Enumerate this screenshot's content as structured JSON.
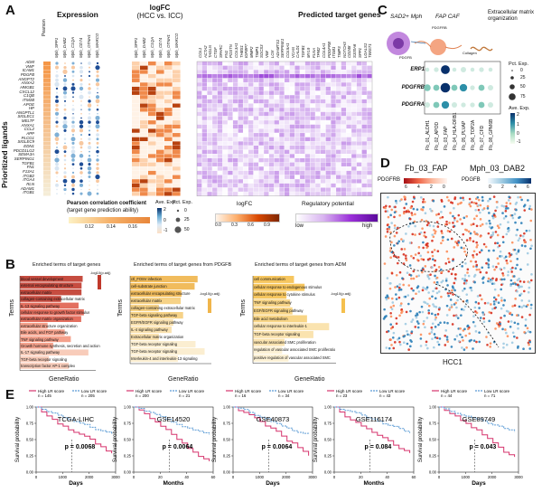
{
  "panelA": {
    "letter": "A",
    "header_expression": "Expression",
    "header_logfc": "logFC\n(HCC vs. ICC)",
    "header_logfc_line1": "logFC",
    "header_logfc_line2": "(HCC vs. ICC)",
    "header_targets": "Predicted target genes",
    "ylabel": "Prioritized ligands",
    "pearson_label": "Pearson",
    "expression_cols": [
      "Mph_SPP1",
      "Mph_DAB2",
      "Mph_C1QA",
      "Mph_CD74",
      "Mph_OTNH1",
      "Mph_MARCO"
    ],
    "logfc_cols": [
      "Mph_SPP1",
      "Mph_DAB2",
      "Mph_C1QA",
      "Mph_CD74",
      "Mph_OTNH1",
      "Mph_MARCO"
    ],
    "target_cols": [
      "COL1",
      "ACTA2",
      "TAGLN",
      "CTGF",
      "SPARC",
      "FN1",
      "POSTN",
      "COL3A1",
      "THBS1",
      "IGFBP7",
      "MMP2",
      "TIMP1",
      "SOCS3",
      "VIM",
      "LOX",
      "ADAMTS1",
      "SERPINE1",
      "COL5A1",
      "VCAN",
      "CALD1",
      "TGFB1",
      "MYL9",
      "FLNA",
      "TPM2",
      "COL4A1",
      "PDGFRB",
      "ITGB1",
      "TIMP3",
      "NOTCH3",
      "CD248",
      "S100A6",
      "SPP1",
      "LGALS1",
      "TWIST1"
    ],
    "ligands": [
      "ADM",
      "VWF",
      "ICAM1",
      "PDGFB",
      "ANGPT2",
      "ANXA2",
      "HMGB1",
      "CXCL12",
      "C1QB",
      "ITM2B",
      "APOE",
      "HP",
      "ANGPTL1",
      "SIGLEC1",
      "MELTF",
      "ANXA1",
      "CCL2",
      "APP",
      "PLCG1",
      "SIGLEC9",
      "EDN1",
      "PDCD1LG2",
      "SEMA3A",
      "SERPING1",
      "TGFB1",
      "FN1",
      "F13A1",
      "ITGB2",
      "ITGA4",
      "RLN",
      "ADAM1",
      "ITGB1"
    ],
    "legend_pearson_title": "Pearson correlation coefficient",
    "legend_pearson_sub": "(target gene prediction ability)",
    "legend_pearson_ticks": [
      "0.12",
      "0.14",
      "0.16"
    ],
    "legend_ave_title": "Ave. Exp.",
    "legend_ave_ticks": [
      "2",
      "0",
      "-1"
    ],
    "legend_pct_title": "Pct. Exp.",
    "legend_pct_ticks": [
      "0",
      "25",
      "50"
    ],
    "legend_logfc_title": "logFC",
    "legend_logfc_ticks": [
      "0.0",
      "0.3",
      "0.6",
      "0.9"
    ],
    "legend_reg_title": "Regulatory potential",
    "legend_reg_low": "low",
    "legend_reg_high": "high"
  },
  "panelB": {
    "letter": "B",
    "ylabel": "Terms",
    "xlabel": "GeneRatio",
    "sub1_title": "Enriched terms of target genes",
    "sub2_title": "Enriched terms of target genes from PDGFB",
    "sub3_title": "Enriched terms of target genes from ADM",
    "sub1_terms": [
      "blood vessel development",
      "external encapsulating structure",
      "extracellular matrix",
      "collagen-containing extracellular matrix",
      "IL-13 signaling pathway",
      "cellular response to growth factor stimulus",
      "extracellular matrix organization",
      "extracellular structure organization",
      "Bile acids, and FGF pathway",
      "TNF signaling pathway",
      "Growth hormone synthesis, secretion and action",
      "IL-17 signaling pathway",
      "TGF-beta receptor signaling",
      "transcription factor AP-1 complex"
    ],
    "sub2_terms": [
      "ctl_FOSV infection",
      "cell-substrate junction",
      "extracellular encapsulating structure",
      "extracellular matrix",
      "collagen-containing extracellular matrix",
      "TGF-beta signaling pathway",
      "EGFR/EGFR signaling pathway",
      "IL-4 signaling pathway",
      "Extracellular matrix organization",
      "TGF-beta receptor signaling",
      "TGF-beta receptor signaling",
      "Interleukin-4 and interleukin-13 signaling"
    ],
    "sub3_terms": [
      "cell communication",
      "cellular response to endogenous stimulus",
      "cellular response to cytokine stimulus",
      "TNF signaling pathway",
      "EGF/EGFR signaling pathway",
      "Bile acid metabolism",
      "cellular response to interleukin-1",
      "TGF-beta receptor signaling",
      "vascular associated SMC proliferation",
      "regulation of vascular associated SMC proliferation",
      "positive regulation of vascular associated SMC"
    ],
    "sub1_legend": "-log10(p.adj)",
    "sub2_legend": "-log10(p.adj)",
    "sub3_legend": "-log10(p.adj)"
  },
  "panelC": {
    "letter": "C",
    "label_sad": "SAD2+ Mph",
    "label_fap": "FAP CAF",
    "label_ecm": "Extracellular matrix organization",
    "label_pdgfb": "PDGFB",
    "label_pdgfrb": "PDGFRB",
    "label_collagen": "Collagen",
    "genes": [
      "ERP1",
      "PDGFRB",
      "PDGFRA"
    ],
    "groups": [
      "Fb_01_ALDH1",
      "Fb_02_APOD",
      "Fb_03_FAP",
      "Fb_04_HLA-DRB1",
      "Fb_05_PLVAP",
      "Fb_06_TOP2A",
      "Fb_07_CFD",
      "Fb_08_GPM6B"
    ],
    "legend_pct_title": "Pct. Exp.",
    "legend_pct_ticks": [
      "0",
      "25",
      "50",
      "75"
    ],
    "legend_ave_title": "Ave. Exp.",
    "legend_ave_ticks": [
      "2",
      "1",
      "0",
      "-1"
    ]
  },
  "panelD": {
    "letter": "D",
    "title_left": "Fb_03_FAP",
    "title_right": "Mph_03_DAB2",
    "scale_left_label": "PDGFRB",
    "scale_right_label": "PDGFB",
    "scale_left_ticks": [
      "6",
      "4",
      "2",
      "0"
    ],
    "scale_right_ticks": [
      "0",
      "2",
      "4",
      "6"
    ],
    "sample": "HCC1"
  },
  "panelE": {
    "letter": "E",
    "ylabel": "Survival probability",
    "legend_high": "High LR score",
    "legend_low": "Low LR score",
    "colors": {
      "high": "#d6336c",
      "low": "#5b9bd5"
    },
    "plots": [
      {
        "dataset": "TCGA-LIHC",
        "pval": "p = 0.0068",
        "n_high": "n = 145",
        "n_low": "n = 205",
        "xlabel": "Days",
        "xticks": [
          "0",
          "1000",
          "2000",
          "3000"
        ]
      },
      {
        "dataset": "GSE14520",
        "pval": "p = 0.0064",
        "n_high": "n = 200",
        "n_low": "n = 21",
        "xlabel": "Months",
        "xticks": [
          "0",
          "20",
          "40",
          "60"
        ]
      },
      {
        "dataset": "GSE40873",
        "pval": "p = 0.0064",
        "n_high": "n = 16",
        "n_low": "n = 34",
        "xlabel": "Days",
        "xticks": [
          "0",
          "1000",
          "2000",
          "3000"
        ]
      },
      {
        "dataset": "GSE116174",
        "pval": "p = 0.084",
        "n_high": "n = 23",
        "n_low": "n = 43",
        "xlabel": "Months",
        "xticks": [
          "0",
          "20",
          "40",
          "60"
        ]
      },
      {
        "dataset": "GSE89749",
        "pval": "p = 0.043",
        "n_high": "n = 44",
        "n_low": "n = 71",
        "xlabel": "Days",
        "xticks": [
          "0",
          "1000",
          "2000",
          "3000"
        ]
      }
    ],
    "yticks": [
      "0.00",
      "0.25",
      "0.50",
      "0.75",
      "1.00"
    ]
  }
}
